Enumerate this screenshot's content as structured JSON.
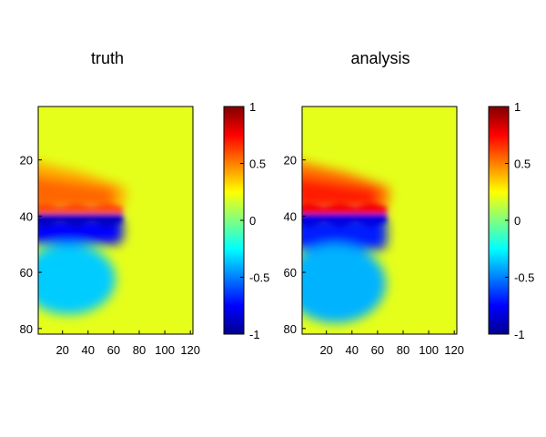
{
  "chart_data": [
    {
      "type": "heatmap",
      "title": "truth",
      "xlabel": "",
      "ylabel": "",
      "xlim": [
        1,
        122
      ],
      "ylim": [
        1,
        82
      ],
      "y_reversed": true,
      "xticks": [
        20,
        40,
        60,
        80,
        100,
        120
      ],
      "yticks": [
        20,
        40,
        60,
        80
      ],
      "colormap": "jet",
      "colorbar": {
        "ticks": [
          1,
          0.5,
          0,
          -0.5,
          -1
        ],
        "range": [
          -1,
          1
        ]
      },
      "background_value": 0.2,
      "features": [
        {
          "kind": "positive-tongue",
          "x_extent": [
            1,
            70
          ],
          "y_extent": [
            20,
            38
          ],
          "peak_value": 0.55
        },
        {
          "kind": "negative-band",
          "x_extent": [
            1,
            70
          ],
          "y_extent": [
            40,
            50
          ],
          "peak_value": -0.75
        },
        {
          "kind": "negative-pool",
          "x_extent": [
            1,
            60
          ],
          "y_extent": [
            50,
            75
          ],
          "peak_value": -0.35
        }
      ]
    },
    {
      "type": "heatmap",
      "title": "analysis",
      "xlabel": "",
      "ylabel": "",
      "xlim": [
        1,
        122
      ],
      "ylim": [
        1,
        82
      ],
      "y_reversed": true,
      "xticks": [
        20,
        40,
        60,
        80,
        100,
        120
      ],
      "yticks": [
        20,
        40,
        60,
        80
      ],
      "colormap": "jet",
      "colorbar": {
        "ticks": [
          1,
          0.5,
          0,
          -0.5,
          -1
        ],
        "range": [
          -1,
          1
        ]
      },
      "background_value": 0.2,
      "features": [
        {
          "kind": "positive-tongue",
          "x_extent": [
            1,
            70
          ],
          "y_extent": [
            20,
            38
          ],
          "peak_value": 0.7
        },
        {
          "kind": "negative-band",
          "x_extent": [
            1,
            70
          ],
          "y_extent": [
            40,
            52
          ],
          "peak_value": -0.7
        },
        {
          "kind": "negative-pool",
          "x_extent": [
            1,
            65
          ],
          "y_extent": [
            50,
            78
          ],
          "peak_value": -0.4
        }
      ]
    }
  ]
}
